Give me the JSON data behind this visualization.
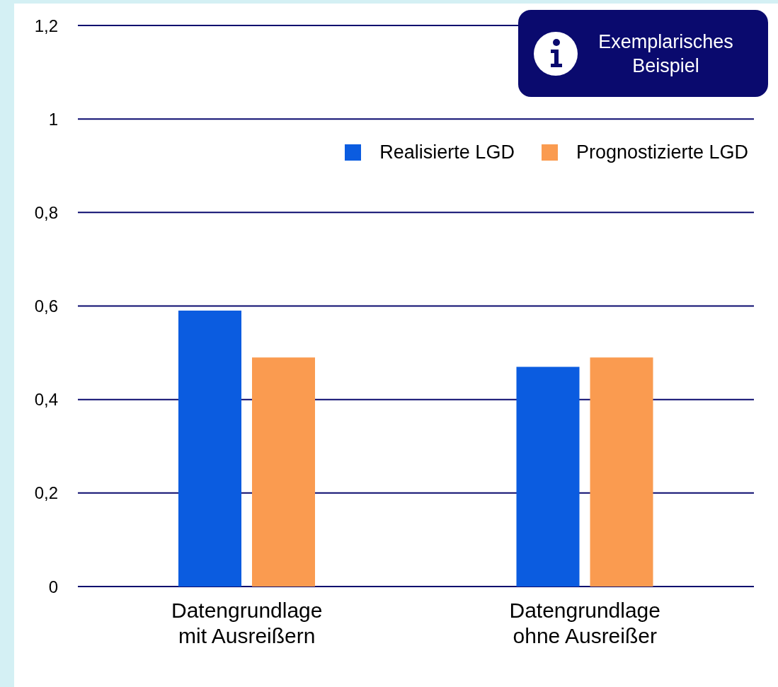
{
  "chart_data": {
    "type": "bar",
    "categories": [
      "Datengrundlage\nmit Ausreißern",
      "Datengrundlage\nohne Ausreißer"
    ],
    "series": [
      {
        "name": "Realisierte LGD",
        "color": "#0b5ce0",
        "values": [
          0.59,
          0.47
        ]
      },
      {
        "name": "Prognostizierte LGD",
        "color": "#fa9b50",
        "values": [
          0.49,
          0.49
        ]
      }
    ],
    "ylim": [
      0,
      1.2
    ],
    "yticks": [
      0,
      {
        "value": 0.2,
        "label": "0,2"
      },
      {
        "value": 0.4,
        "label": "0,4"
      },
      {
        "value": 0.6,
        "label": "0,6"
      },
      {
        "value": 0.8,
        "label": "0,8"
      },
      1,
      {
        "value": 1.2,
        "label": "1,2"
      }
    ],
    "grid": "y",
    "legend": "top right",
    "annotations": [
      "Exemplarisches Beispiel"
    ]
  }
}
